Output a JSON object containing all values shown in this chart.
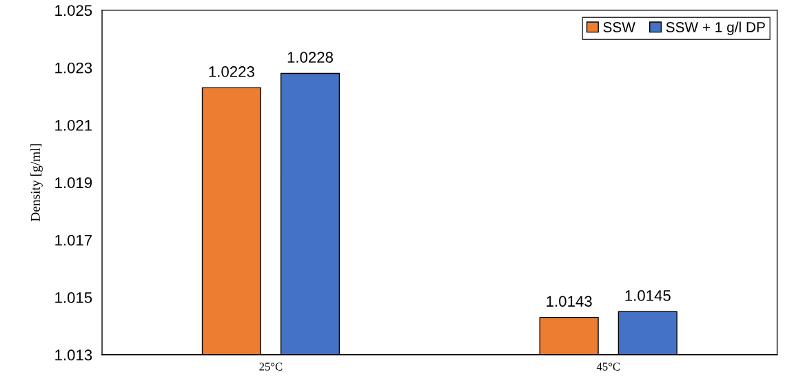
{
  "chart_data": {
    "type": "bar",
    "ylabel": "Density [g/ml]",
    "categories": [
      "25°C",
      "45°C"
    ],
    "series": [
      {
        "name": "SSW",
        "color": "#ed7d31",
        "values": [
          1.0223,
          1.0143
        ]
      },
      {
        "name": "SSW + 1 g/l DP",
        "color": "#4472c4",
        "values": [
          1.0228,
          1.0145
        ]
      }
    ],
    "ylim": [
      1.013,
      1.025
    ],
    "yticks": [
      1.013,
      1.015,
      1.017,
      1.019,
      1.021,
      1.023,
      1.025
    ],
    "data_labels": true,
    "legend": "top right",
    "grid": false
  }
}
